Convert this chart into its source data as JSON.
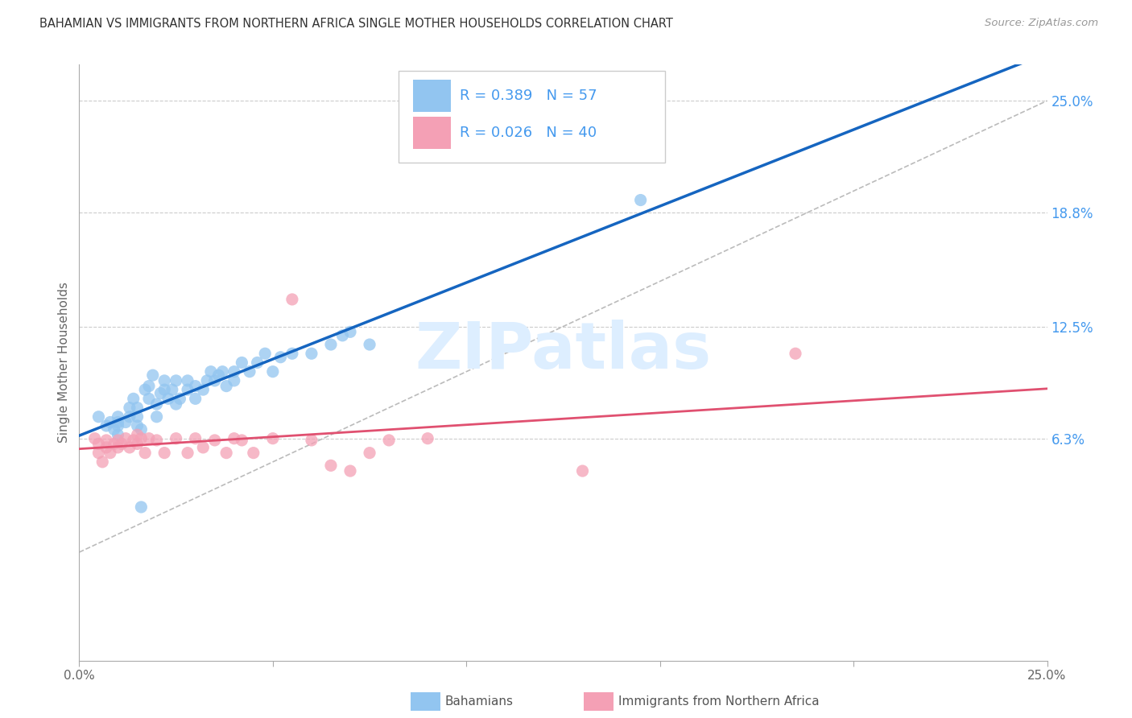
{
  "title": "BAHAMIAN VS IMMIGRANTS FROM NORTHERN AFRICA SINGLE MOTHER HOUSEHOLDS CORRELATION CHART",
  "source": "Source: ZipAtlas.com",
  "ylabel": "Single Mother Households",
  "watermark": "ZIPatlas",
  "blue_label": "Bahamians",
  "pink_label": "Immigrants from Northern Africa",
  "blue_R": 0.389,
  "blue_N": 57,
  "pink_R": 0.026,
  "pink_N": 40,
  "xlim": [
    0,
    0.25
  ],
  "ylim": [
    -0.06,
    0.27
  ],
  "right_yticks": [
    0.063,
    0.125,
    0.188,
    0.25
  ],
  "right_yticklabels": [
    "6.3%",
    "12.5%",
    "18.8%",
    "25.0%"
  ],
  "blue_color": "#92C5F0",
  "pink_color": "#F4A0B5",
  "blue_line_color": "#1565C0",
  "pink_line_color": "#E05070",
  "ref_line_color": "#BBBBBB",
  "grid_color": "#CCCCCC",
  "title_color": "#333333",
  "right_label_color": "#4499EE",
  "watermark_color": "#DDEEFF",
  "blue_x": [
    0.005,
    0.007,
    0.008,
    0.009,
    0.01,
    0.01,
    0.01,
    0.01,
    0.012,
    0.013,
    0.013,
    0.014,
    0.015,
    0.015,
    0.015,
    0.016,
    0.017,
    0.018,
    0.018,
    0.019,
    0.02,
    0.02,
    0.021,
    0.022,
    0.022,
    0.023,
    0.024,
    0.025,
    0.025,
    0.026,
    0.028,
    0.028,
    0.03,
    0.03,
    0.032,
    0.033,
    0.034,
    0.035,
    0.036,
    0.037,
    0.038,
    0.04,
    0.04,
    0.042,
    0.044,
    0.046,
    0.048,
    0.05,
    0.052,
    0.055,
    0.06,
    0.065,
    0.068,
    0.07,
    0.075,
    0.145,
    0.016
  ],
  "blue_y": [
    0.075,
    0.07,
    0.072,
    0.068,
    0.065,
    0.07,
    0.072,
    0.075,
    0.072,
    0.075,
    0.08,
    0.085,
    0.07,
    0.075,
    0.08,
    0.068,
    0.09,
    0.085,
    0.092,
    0.098,
    0.075,
    0.082,
    0.088,
    0.09,
    0.095,
    0.085,
    0.09,
    0.082,
    0.095,
    0.085,
    0.09,
    0.095,
    0.085,
    0.092,
    0.09,
    0.095,
    0.1,
    0.095,
    0.098,
    0.1,
    0.092,
    0.095,
    0.1,
    0.105,
    0.1,
    0.105,
    0.11,
    0.1,
    0.108,
    0.11,
    0.11,
    0.115,
    0.12,
    0.122,
    0.115,
    0.195,
    0.025
  ],
  "pink_x": [
    0.004,
    0.005,
    0.005,
    0.006,
    0.007,
    0.007,
    0.008,
    0.009,
    0.01,
    0.01,
    0.011,
    0.012,
    0.013,
    0.014,
    0.015,
    0.015,
    0.016,
    0.017,
    0.018,
    0.02,
    0.022,
    0.025,
    0.028,
    0.03,
    0.032,
    0.035,
    0.038,
    0.04,
    0.042,
    0.045,
    0.05,
    0.055,
    0.06,
    0.065,
    0.07,
    0.075,
    0.08,
    0.09,
    0.13,
    0.185
  ],
  "pink_y": [
    0.063,
    0.06,
    0.055,
    0.05,
    0.058,
    0.062,
    0.055,
    0.06,
    0.058,
    0.062,
    0.06,
    0.063,
    0.058,
    0.062,
    0.06,
    0.065,
    0.063,
    0.055,
    0.063,
    0.062,
    0.055,
    0.063,
    0.055,
    0.063,
    0.058,
    0.062,
    0.055,
    0.063,
    0.062,
    0.055,
    0.063,
    0.14,
    0.062,
    0.048,
    0.045,
    0.055,
    0.062,
    0.063,
    0.045,
    0.11
  ],
  "fig_width": 14.06,
  "fig_height": 8.92,
  "dpi": 100
}
